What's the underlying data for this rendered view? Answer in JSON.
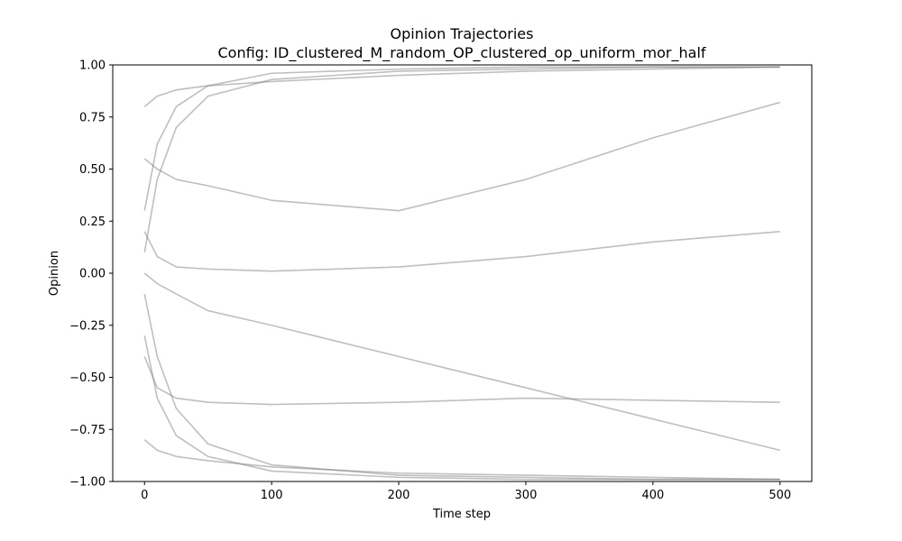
{
  "chart_data": {
    "type": "line",
    "title": "Opinion Trajectories",
    "subtitle": "Config: ID_clustered_M_random_OP_clustered_op_uniform_mor_half",
    "xlabel": "Time step",
    "ylabel": "Opinion",
    "xlim": [
      -25,
      525
    ],
    "ylim": [
      -1.0,
      1.0
    ],
    "x_ticks": [
      0,
      100,
      200,
      300,
      400,
      500
    ],
    "x_tick_labels": [
      "0",
      "100",
      "200",
      "300",
      "400",
      "500"
    ],
    "y_ticks": [
      -1.0,
      -0.75,
      -0.5,
      -0.25,
      0.0,
      0.25,
      0.5,
      0.75,
      1.0
    ],
    "y_tick_labels": [
      "−1.00",
      "−0.75",
      "−0.50",
      "−0.25",
      "0.00",
      "0.25",
      "0.50",
      "0.75",
      "1.00"
    ],
    "grid": false,
    "legend": "none",
    "series_color": "#808080",
    "series_alpha": 0.5,
    "n_steps": 500,
    "series": [
      {
        "x": [
          0,
          10,
          25,
          50,
          100,
          200,
          300,
          400,
          500
        ],
        "y": [
          0.3,
          0.62,
          0.8,
          0.9,
          0.96,
          0.98,
          0.99,
          0.99,
          0.99
        ]
      },
      {
        "x": [
          0,
          10,
          25,
          50,
          100,
          200,
          300,
          400,
          500
        ],
        "y": [
          0.1,
          0.45,
          0.7,
          0.85,
          0.93,
          0.97,
          0.98,
          0.99,
          0.99
        ]
      },
      {
        "x": [
          0,
          10,
          25,
          50,
          100,
          200,
          300,
          400,
          500
        ],
        "y": [
          -0.3,
          -0.6,
          -0.78,
          -0.88,
          -0.95,
          -0.98,
          -0.99,
          -0.99,
          -0.99
        ]
      },
      {
        "x": [
          0,
          10,
          25,
          50,
          100,
          200,
          300,
          400,
          500
        ],
        "y": [
          -0.1,
          -0.4,
          -0.65,
          -0.82,
          -0.92,
          -0.97,
          -0.98,
          -0.99,
          -0.99
        ]
      },
      {
        "x": [
          0,
          10,
          25,
          50,
          100,
          200,
          300,
          400,
          500
        ],
        "y": [
          0.2,
          0.08,
          0.03,
          0.02,
          0.01,
          0.03,
          0.08,
          0.15,
          0.2
        ]
      },
      {
        "x": [
          0,
          10,
          25,
          50,
          100,
          200,
          300,
          400,
          500
        ],
        "y": [
          -0.4,
          -0.55,
          -0.6,
          -0.62,
          -0.63,
          -0.62,
          -0.6,
          -0.61,
          -0.62
        ]
      },
      {
        "x": [
          0,
          10,
          25,
          50,
          100,
          200,
          300,
          400,
          500
        ],
        "y": [
          0.55,
          0.5,
          0.45,
          0.42,
          0.35,
          0.3,
          0.45,
          0.65,
          0.82
        ]
      },
      {
        "x": [
          0,
          10,
          25,
          50,
          100,
          200,
          300,
          400,
          500
        ],
        "y": [
          0.0,
          -0.05,
          -0.1,
          -0.18,
          -0.25,
          -0.4,
          -0.55,
          -0.7,
          -0.85
        ]
      },
      {
        "x": [
          0,
          10,
          25,
          50,
          100,
          200,
          300,
          400,
          500
        ],
        "y": [
          0.8,
          0.85,
          0.88,
          0.9,
          0.92,
          0.95,
          0.97,
          0.98,
          0.99
        ]
      },
      {
        "x": [
          0,
          10,
          25,
          50,
          100,
          200,
          300,
          400,
          500
        ],
        "y": [
          -0.8,
          -0.85,
          -0.88,
          -0.9,
          -0.93,
          -0.96,
          -0.97,
          -0.98,
          -0.99
        ]
      }
    ]
  }
}
